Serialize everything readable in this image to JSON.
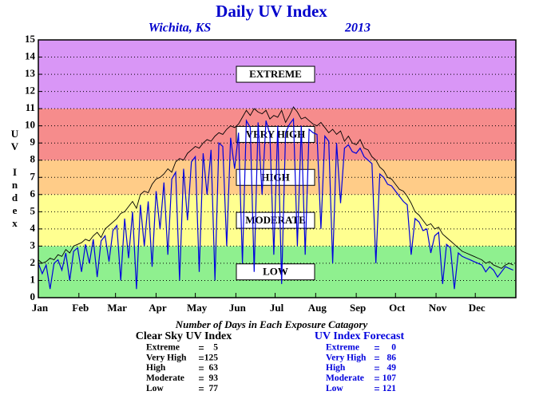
{
  "chart_data": {
    "type": "line",
    "title": "Daily UV Index",
    "subtitle_left": "Wichita, KS",
    "subtitle_right": "2013",
    "ylabel": "UV Index",
    "x": [
      1,
      4,
      7,
      10,
      13,
      16,
      19,
      22,
      25,
      28,
      31,
      34,
      37,
      40,
      43,
      46,
      49,
      52,
      55,
      58,
      61,
      64,
      67,
      70,
      73,
      76,
      79,
      82,
      85,
      88,
      91,
      94,
      97,
      100,
      103,
      106,
      109,
      112,
      115,
      118,
      121,
      124,
      127,
      130,
      133,
      136,
      139,
      142,
      145,
      148,
      151,
      154,
      157,
      160,
      163,
      166,
      169,
      172,
      175,
      178,
      181,
      184,
      187,
      190,
      193,
      196,
      199,
      202,
      205,
      208,
      211,
      214,
      217,
      220,
      223,
      226,
      229,
      232,
      235,
      238,
      241,
      244,
      247,
      250,
      253,
      256,
      259,
      262,
      265,
      268,
      271,
      274,
      277,
      280,
      283,
      286,
      289,
      292,
      295,
      298,
      301,
      304,
      307,
      310,
      313,
      316,
      319,
      322,
      325,
      328,
      331,
      334,
      337,
      340,
      343,
      346,
      349,
      352,
      355,
      358,
      361,
      364
    ],
    "series": [
      {
        "name": "Clear Sky UV Index",
        "color": "#000000",
        "values": [
          2.2,
          2.0,
          2.1,
          2.3,
          2.2,
          2.5,
          2.4,
          2.8,
          2.6,
          3.0,
          3.1,
          3.2,
          3.4,
          3.3,
          3.6,
          3.8,
          3.5,
          4.0,
          4.2,
          4.4,
          4.6,
          4.9,
          5.0,
          5.3,
          5.6,
          5.2,
          6.0,
          6.2,
          6.1,
          6.6,
          6.9,
          7.0,
          7.2,
          7.5,
          7.3,
          7.9,
          8.1,
          8.0,
          8.4,
          8.6,
          8.8,
          8.7,
          9.0,
          9.2,
          9.1,
          9.4,
          9.6,
          9.5,
          9.8,
          10.0,
          9.9,
          10.1,
          10.5,
          10.9,
          10.6,
          11.0,
          10.8,
          10.7,
          10.9,
          10.4,
          10.6,
          10.5,
          10.9,
          10.2,
          10.6,
          11.1,
          10.8,
          10.4,
          10.5,
          10.3,
          10.1,
          10.0,
          10.2,
          9.9,
          9.6,
          9.8,
          9.5,
          9.7,
          9.1,
          9.4,
          9.0,
          8.9,
          9.2,
          8.7,
          8.6,
          8.2,
          8.0,
          7.6,
          7.4,
          7.0,
          6.9,
          6.6,
          6.3,
          6.2,
          5.9,
          5.5,
          5.0,
          4.8,
          4.5,
          4.2,
          4.3,
          4.0,
          4.1,
          3.7,
          3.5,
          3.3,
          3.1,
          2.9,
          2.7,
          2.6,
          2.5,
          2.4,
          2.3,
          2.2,
          2.0,
          2.1,
          1.9,
          1.8,
          1.7,
          1.9,
          2.0,
          1.9
        ]
      },
      {
        "name": "UV Index Forecast",
        "color": "#0000dd",
        "values": [
          2.0,
          1.4,
          1.9,
          0.5,
          2.0,
          2.2,
          1.6,
          2.6,
          1.0,
          2.7,
          2.9,
          1.5,
          3.1,
          2.0,
          3.4,
          1.2,
          3.3,
          3.6,
          2.1,
          3.9,
          4.2,
          1.0,
          4.6,
          2.3,
          5.0,
          0.5,
          5.4,
          3.0,
          5.6,
          1.8,
          6.2,
          4.0,
          6.7,
          2.5,
          6.9,
          7.3,
          1.0,
          7.5,
          4.5,
          7.9,
          8.2,
          1.5,
          8.4,
          6.0,
          8.6,
          1.0,
          9.0,
          8.8,
          3.0,
          9.3,
          7.5,
          9.6,
          2.0,
          10.3,
          9.9,
          1.5,
          10.2,
          6.0,
          10.3,
          9.5,
          2.5,
          10.0,
          0.8,
          9.6,
          10.1,
          10.4,
          3.0,
          10.0,
          2.5,
          9.8,
          9.6,
          9.5,
          4.0,
          9.4,
          9.1,
          2.0,
          9.0,
          5.5,
          8.7,
          8.9,
          8.5,
          8.4,
          8.7,
          8.2,
          8.0,
          7.8,
          2.0,
          7.2,
          7.0,
          6.6,
          6.5,
          6.2,
          5.9,
          5.6,
          5.4,
          2.5,
          4.6,
          4.4,
          3.9,
          4.0,
          2.6,
          3.6,
          3.8,
          0.8,
          3.1,
          2.9,
          0.5,
          2.6,
          2.4,
          2.3,
          2.2,
          2.1,
          2.0,
          1.9,
          1.5,
          1.8,
          1.6,
          1.2,
          1.5,
          1.8,
          1.7,
          1.6
        ]
      }
    ],
    "xlim": [
      1,
      366
    ],
    "xticks": [
      {
        "value": 1,
        "label": "Jan"
      },
      {
        "value": 32,
        "label": "Feb"
      },
      {
        "value": 60,
        "label": "Mar"
      },
      {
        "value": 91,
        "label": "Apr"
      },
      {
        "value": 121,
        "label": "May"
      },
      {
        "value": 152,
        "label": "Jun"
      },
      {
        "value": 182,
        "label": "Jul"
      },
      {
        "value": 213,
        "label": "Aug"
      },
      {
        "value": 244,
        "label": "Sep"
      },
      {
        "value": 274,
        "label": "Oct"
      },
      {
        "value": 305,
        "label": "Nov"
      },
      {
        "value": 335,
        "label": "Dec"
      }
    ],
    "ylim": [
      0,
      15
    ],
    "yticks": [
      0,
      1,
      2,
      3,
      4,
      5,
      6,
      7,
      8,
      9,
      10,
      11,
      12,
      13,
      14,
      15
    ],
    "grid": true,
    "bands": [
      {
        "label": "LOW",
        "from": 0,
        "to": 3,
        "color": "#8ff08f"
      },
      {
        "label": "MODERATE",
        "from": 3,
        "to": 6,
        "color": "#ffff90"
      },
      {
        "label": "HIGH",
        "from": 6,
        "to": 8,
        "color": "#ffcc88"
      },
      {
        "label": "VERY HIGH",
        "from": 8,
        "to": 11,
        "color": "#f68c8c"
      },
      {
        "label": "EXTREME",
        "from": 11,
        "to": 15,
        "color": "#d996f6"
      }
    ]
  },
  "summary": {
    "title": "Number of Days in Each Exposure Catagory",
    "tables": [
      {
        "rows": [
          {
            "label": "Extreme",
            "value": 5
          },
          {
            "label": "Very High",
            "value": 125
          },
          {
            "label": "High",
            "value": 63
          },
          {
            "label": "Moderate",
            "value": 93
          },
          {
            "label": "Low",
            "value": 77
          }
        ]
      },
      {
        "rows": [
          {
            "label": "Extreme",
            "value": 0
          },
          {
            "label": "Very High",
            "value": 86
          },
          {
            "label": "High",
            "value": 49
          },
          {
            "label": "Moderate",
            "value": 107
          },
          {
            "label": "Low",
            "value": 121
          }
        ]
      }
    ]
  }
}
